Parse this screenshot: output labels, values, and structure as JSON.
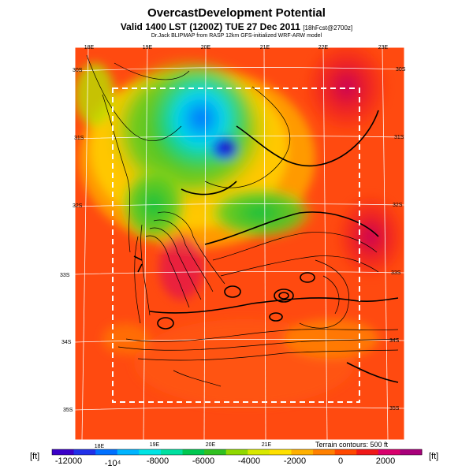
{
  "header": {
    "title": "OvercastDevelopment Potential",
    "valid_line": "Valid 1400 LST (1200Z) TUE 27 Dec 2011",
    "valid_suffix": "[18hFcst@2700z]",
    "credit": "Dr.Jack BLIPMAP from RASP 12km GFS-initialized WRF-ARW model"
  },
  "map": {
    "top_lon_labels": [
      "18E",
      "19E",
      "20E",
      "21E",
      "22E",
      "23E"
    ],
    "bottom_lon_labels": [
      "18E",
      "19E",
      "20E",
      "21E"
    ],
    "left_lat_labels": [
      "30S",
      "31S",
      "32S",
      "33S",
      "34S",
      "35S"
    ],
    "right_lat_labels": [
      "30S",
      "31S",
      "32S",
      "33S",
      "34S",
      "35S"
    ],
    "terrain_note": "Terrain contours: 500 ft",
    "colors": {
      "frame": "#ffffff",
      "contour": "#000000",
      "dashed_box": "#ffffff"
    }
  },
  "colorbar": {
    "unit_left": "[ft]",
    "unit_right": "[ft]",
    "tick_labels": [
      "-12000",
      "-10⁴",
      "-8000",
      "-6000",
      "-4000",
      "-2000",
      "0",
      "2000"
    ],
    "colors": [
      "#3a00c8",
      "#2030e8",
      "#0070ff",
      "#00b4ff",
      "#00e4e4",
      "#00e0a0",
      "#00c850",
      "#30c020",
      "#90d800",
      "#d8e800",
      "#ffe000",
      "#ffb000",
      "#ff8000",
      "#ff4800",
      "#f01818",
      "#d8006c",
      "#a8007a"
    ]
  }
}
